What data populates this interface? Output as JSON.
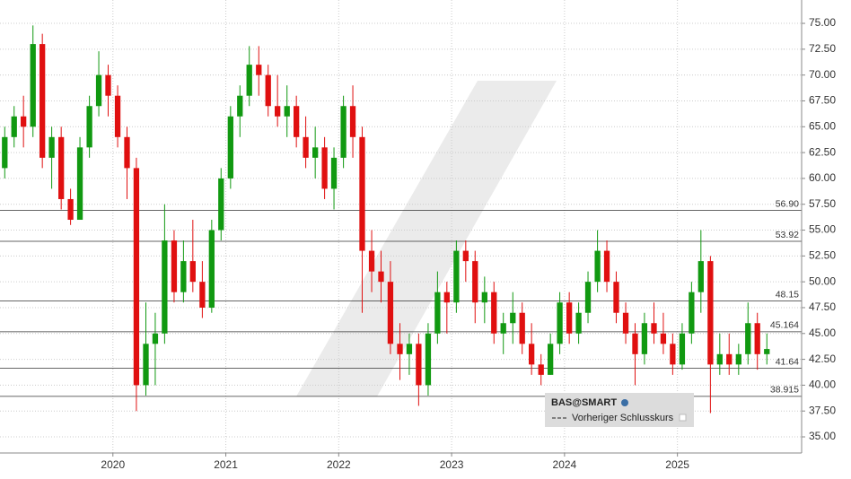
{
  "chart_data": {
    "type": "candlestick",
    "x": [
      2019.042,
      2019.125,
      2019.208,
      2019.292,
      2019.375,
      2019.458,
      2019.542,
      2019.625,
      2019.708,
      2019.792,
      2019.875,
      2019.958,
      2020.042,
      2020.125,
      2020.208,
      2020.292,
      2020.375,
      2020.458,
      2020.542,
      2020.625,
      2020.708,
      2020.792,
      2020.875,
      2020.958,
      2021.042,
      2021.125,
      2021.208,
      2021.292,
      2021.375,
      2021.458,
      2021.542,
      2021.625,
      2021.708,
      2021.792,
      2021.875,
      2021.958,
      2022.042,
      2022.125,
      2022.208,
      2022.292,
      2022.375,
      2022.458,
      2022.542,
      2022.625,
      2022.708,
      2022.792,
      2022.875,
      2022.958,
      2023.042,
      2023.125,
      2023.208,
      2023.292,
      2023.375,
      2023.458,
      2023.542,
      2023.625,
      2023.708,
      2023.792,
      2023.875,
      2023.958,
      2024.042,
      2024.125,
      2024.208,
      2024.292,
      2024.375,
      2024.458,
      2024.542,
      2024.625,
      2024.708,
      2024.792,
      2024.875,
      2024.958,
      2025.042,
      2025.125,
      2025.208,
      2025.292,
      2025.375,
      2025.458,
      2025.542,
      2025.625,
      2025.708,
      2025.792
    ],
    "open": [
      61,
      64,
      66,
      65,
      73,
      62,
      64,
      58,
      56,
      63,
      67,
      70,
      68,
      64,
      61,
      40,
      44,
      45,
      54,
      49,
      52,
      50,
      47.5,
      55,
      60,
      66,
      68,
      71,
      70,
      67,
      66,
      67,
      64,
      62,
      63,
      59,
      62,
      67,
      64,
      53,
      51,
      50,
      44,
      43,
      44,
      40,
      45,
      49,
      48,
      53,
      52,
      48,
      49,
      45,
      46,
      47,
      44,
      42,
      41,
      44,
      48,
      45,
      47,
      50,
      53,
      50,
      47,
      45,
      43,
      46,
      45,
      44,
      42,
      45,
      49,
      52,
      42,
      43,
      42,
      43,
      46,
      43
    ],
    "high": [
      65,
      67,
      68,
      74.8,
      74,
      65,
      65,
      59,
      64,
      68,
      72.3,
      71,
      69,
      65,
      62,
      48,
      47,
      57.5,
      55,
      54,
      56,
      52,
      56,
      61,
      67,
      69,
      72.8,
      72.8,
      71,
      70,
      69,
      68,
      66,
      65,
      64,
      63,
      68,
      69,
      65,
      55,
      53,
      52,
      46,
      45,
      45,
      46,
      51,
      50,
      54,
      54,
      53,
      50.5,
      50,
      47,
      49,
      48,
      46,
      43,
      45,
      49,
      49,
      48,
      51,
      55,
      54,
      51,
      48,
      46,
      47,
      48,
      47,
      45,
      46,
      50,
      55,
      52.5,
      45,
      45,
      44,
      48,
      47,
      45
    ],
    "low": [
      60,
      63,
      63,
      64,
      61,
      59,
      57,
      55.5,
      56,
      62,
      66,
      66,
      63,
      58,
      37.5,
      39,
      40,
      44,
      48,
      48,
      49,
      46.5,
      47,
      54,
      59,
      64,
      67,
      68,
      66,
      65,
      64,
      63,
      61,
      60,
      58,
      57,
      61,
      62,
      47,
      49,
      48,
      43,
      40.5,
      41,
      38,
      39,
      44,
      45,
      47,
      50,
      46,
      46,
      44,
      43,
      44,
      43,
      41,
      40,
      41,
      43,
      44,
      44,
      46,
      49,
      49,
      46,
      44,
      40,
      42,
      44,
      43,
      41,
      41.5,
      44,
      47,
      37.3,
      41,
      41,
      41,
      42,
      41.5,
      42
    ],
    "close": [
      64,
      66,
      65,
      73,
      62,
      64,
      58,
      56,
      63,
      67,
      70,
      68,
      64,
      61,
      40,
      44,
      45,
      54,
      49,
      52,
      50,
      47.5,
      55,
      60,
      66,
      68,
      71,
      70,
      67,
      66,
      67,
      64,
      62,
      63,
      59,
      62,
      67,
      64,
      53,
      51,
      50,
      44,
      43,
      44,
      40,
      45,
      49,
      48,
      53,
      52,
      48,
      49,
      45,
      46,
      47,
      44,
      42,
      41,
      44,
      48,
      45,
      47,
      50,
      53,
      50,
      47,
      45,
      43,
      46,
      45,
      44,
      42,
      45,
      49,
      52,
      42,
      43,
      42,
      43,
      46,
      43,
      43.5
    ],
    "up_color": "#119911",
    "down_color": "#e01010",
    "xlim": [
      2019.0,
      2026.1
    ],
    "xticks": [
      2020,
      2021,
      2022,
      2023,
      2024,
      2025
    ],
    "ylim": [
      33.44,
      77.26
    ],
    "yticks": [
      {
        "value": 35,
        "label": "35.00"
      },
      {
        "value": 37.5,
        "label": "37.50"
      },
      {
        "value": 40,
        "label": "40.00"
      },
      {
        "value": 42.5,
        "label": "42.50"
      },
      {
        "value": 45,
        "label": "45.00"
      },
      {
        "value": 47.5,
        "label": "47.50"
      },
      {
        "value": 50,
        "label": "50.00"
      },
      {
        "value": 52.5,
        "label": "52.50"
      },
      {
        "value": 55,
        "label": "55.00"
      },
      {
        "value": 57.5,
        "label": "57.50"
      },
      {
        "value": 60,
        "label": "60.00"
      },
      {
        "value": 62.5,
        "label": "62.50"
      },
      {
        "value": 65,
        "label": "65.00"
      },
      {
        "value": 67.5,
        "label": "67.50"
      },
      {
        "value": 70,
        "label": "70.00"
      },
      {
        "value": 72.5,
        "label": "72.50"
      },
      {
        "value": 75,
        "label": "75.00"
      }
    ],
    "grid": true,
    "levels": [
      {
        "value": 56.9,
        "label": "56.90"
      },
      53.92,
      48.15,
      45.164,
      41.64,
      38.915
    ],
    "legend": {
      "symbol": "BAS@SMART",
      "item": "Vorheriger Schlusskurs"
    }
  }
}
